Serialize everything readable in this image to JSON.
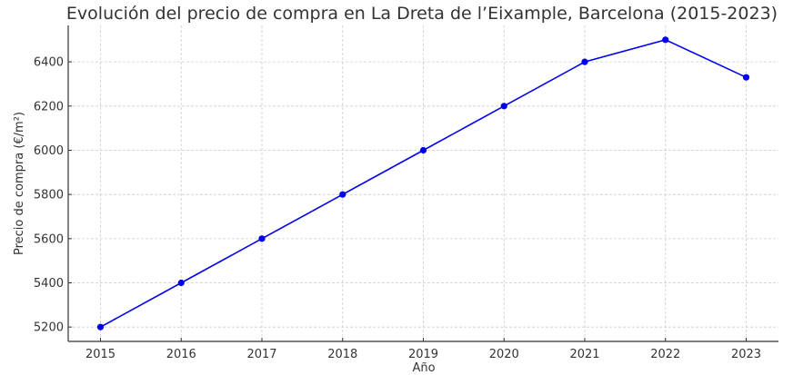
{
  "chart_data": {
    "type": "line",
    "title": "Evolución del precio de compra en La Dreta de l’Eixample, Barcelona (2015-2023)",
    "xlabel": "Año",
    "ylabel": "Precio de compra (€/m²)",
    "x": [
      2015,
      2016,
      2017,
      2018,
      2019,
      2020,
      2021,
      2022,
      2023
    ],
    "categories": [
      "2015",
      "2016",
      "2017",
      "2018",
      "2019",
      "2020",
      "2021",
      "2022",
      "2023"
    ],
    "series": [
      {
        "name": "Precio de compra",
        "values": [
          5200,
          5400,
          5600,
          5800,
          6000,
          6200,
          6400,
          6500,
          6330
        ],
        "color": "#0000ee",
        "marker": "circle"
      }
    ],
    "yticks": [
      5200,
      5400,
      5600,
      5800,
      6000,
      6200,
      6400
    ],
    "ylim": [
      5135,
      6565
    ],
    "xlim": [
      2014.6,
      2023.4
    ],
    "grid": true,
    "legend": null
  }
}
